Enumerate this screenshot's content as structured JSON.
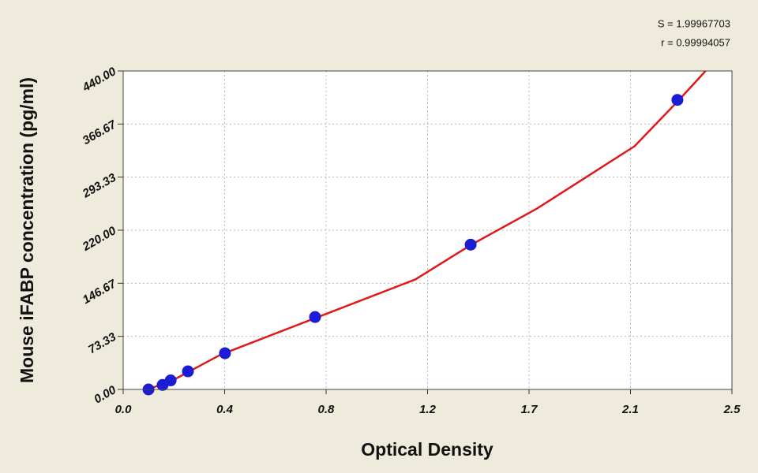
{
  "chart_data": {
    "type": "scatter",
    "x_label": "Optical Density",
    "y_label": "Mouse iFABP concentration (pg/ml)",
    "annotations": [
      "S = 1.99967703",
      "r = 0.99994057"
    ],
    "xlim": [
      0,
      2.5
    ],
    "xticks": [
      {
        "value": 0,
        "label": "0.0"
      },
      {
        "value": 0.4167,
        "label": "0.4"
      },
      {
        "value": 0.8333,
        "label": "0.8"
      },
      {
        "value": 1.25,
        "label": "1.2"
      },
      {
        "value": 1.6667,
        "label": "1.7"
      },
      {
        "value": 2.0833,
        "label": "2.1"
      },
      {
        "value": 2.5,
        "label": "2.5"
      }
    ],
    "ylim": [
      0,
      440
    ],
    "yticks": [
      {
        "value": 0,
        "label": "0.00"
      },
      {
        "value": 73.333,
        "label": "73.33"
      },
      {
        "value": 146.667,
        "label": "146.67"
      },
      {
        "value": 220,
        "label": "220.00"
      },
      {
        "value": 293.333,
        "label": "293.33"
      },
      {
        "value": 366.667,
        "label": "366.67"
      },
      {
        "value": 440,
        "label": "440.00"
      }
    ],
    "grid": true,
    "points": {
      "color": "#1c1cd6",
      "x": [
        0.104,
        0.162,
        0.195,
        0.266,
        0.418,
        0.788,
        1.427,
        2.276
      ],
      "values": [
        0,
        6.25,
        12.5,
        25,
        50,
        100,
        200,
        400
      ]
    },
    "fit": {
      "color": "#e01818",
      "x": [
        0.1,
        0.2,
        0.4,
        0.8,
        1.2,
        1.43,
        1.7,
        2.1,
        2.28,
        2.4
      ],
      "values": [
        0,
        12,
        48,
        100,
        152,
        200,
        250,
        336,
        399,
        443
      ]
    }
  }
}
